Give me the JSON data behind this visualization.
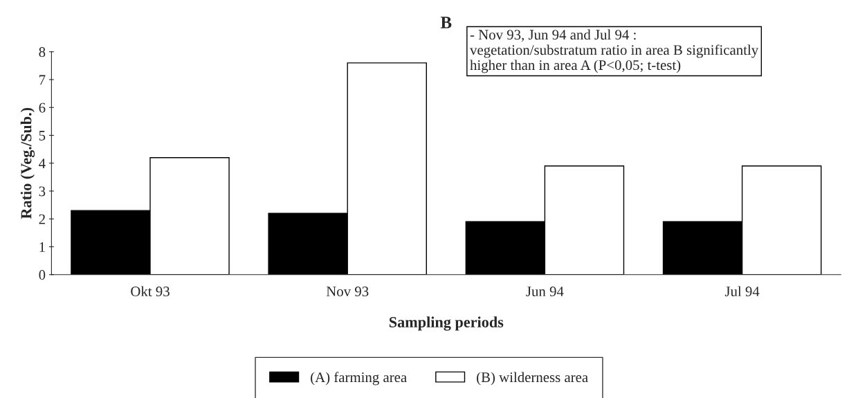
{
  "chart_data": {
    "type": "bar",
    "title": "B",
    "xlabel": "Sampling periods",
    "ylabel": "Ratio (Veg./Sub.)",
    "categories": [
      "Okt 93",
      "Nov 93",
      "Jun 94",
      "Jul 94"
    ],
    "series": [
      {
        "name": "(A) farming area",
        "color": "#000000",
        "values": [
          2.3,
          2.2,
          1.9,
          1.9
        ]
      },
      {
        "name": "(B) wilderness area",
        "color": "#ffffff",
        "values": [
          4.2,
          7.6,
          3.9,
          3.9
        ]
      }
    ],
    "ylim": [
      0,
      8
    ],
    "yticks": [
      0,
      1,
      2,
      3,
      4,
      5,
      6,
      7,
      8
    ],
    "grid": false,
    "legend": "bottom",
    "annotations": [
      "- Nov 93, Jun 94 and Jul 94 :\nvegetation/substratum ratio in area B significantly\nhigher than in area A (P<0,05; t-test)"
    ]
  }
}
